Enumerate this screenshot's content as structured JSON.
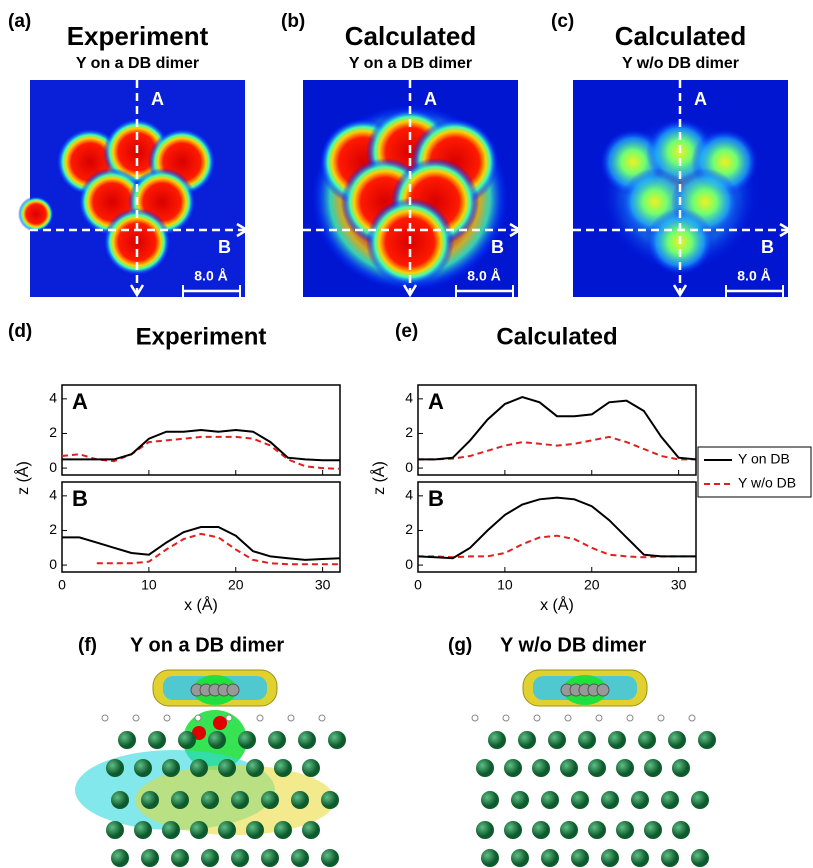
{
  "panels": [
    {
      "label": "(a)",
      "title": "Experiment",
      "subtitle": "Y on a DB dimer",
      "cut_a": "A",
      "cut_b": "B",
      "scale": "8.0 Å"
    },
    {
      "label": "(b)",
      "title": "Calculated",
      "subtitle": "Y on a DB dimer",
      "cut_a": "A",
      "cut_b": "B",
      "scale": "8.0 Å"
    },
    {
      "label": "(c)",
      "title": "Calculated",
      "subtitle": "Y w/o DB dimer",
      "cut_a": "A",
      "cut_b": "B",
      "scale": "8.0 Å"
    }
  ],
  "chart_data": [
    {
      "type": "line",
      "label": "(d)",
      "title": "Experiment",
      "xlabel": "x (Å)",
      "ylabel": "z (Å)",
      "xlim": [
        0,
        32
      ],
      "xticks": [
        0,
        10,
        20,
        30
      ],
      "ylim": [
        -0.4,
        4.8
      ],
      "yticks": [
        0,
        2,
        4
      ],
      "subplots": [
        {
          "label": "A",
          "x": [
            0,
            2,
            4,
            6,
            8,
            10,
            12,
            14,
            16,
            18,
            20,
            22,
            24,
            26,
            28,
            30,
            32
          ],
          "series": [
            {
              "color": "#000000",
              "dash": false,
              "values": [
                0.5,
                0.5,
                0.5,
                0.5,
                0.8,
                1.7,
                2.1,
                2.1,
                2.2,
                2.1,
                2.2,
                2.1,
                1.5,
                0.6,
                0.5,
                0.45,
                0.45
              ]
            },
            {
              "color": "#e02020",
              "dash": true,
              "values": [
                0.7,
                0.8,
                0.5,
                0.4,
                0.8,
                1.5,
                1.6,
                1.7,
                1.8,
                1.8,
                1.8,
                1.7,
                1.3,
                0.5,
                0.1,
                0.0,
                -0.05
              ]
            }
          ]
        },
        {
          "label": "B",
          "x": [
            0,
            2,
            4,
            6,
            8,
            10,
            12,
            14,
            16,
            18,
            20,
            22,
            24,
            26,
            28,
            30,
            32
          ],
          "series": [
            {
              "color": "#000000",
              "dash": false,
              "values": [
                1.6,
                1.6,
                1.3,
                1.0,
                0.7,
                0.6,
                1.3,
                1.9,
                2.2,
                2.2,
                1.7,
                0.8,
                0.5,
                0.4,
                0.3,
                0.35,
                0.4
              ]
            },
            {
              "color": "#e02020",
              "dash": true,
              "values": [
                null,
                null,
                0.1,
                0.1,
                0.1,
                0.2,
                0.9,
                1.5,
                1.8,
                1.6,
                0.9,
                0.3,
                0.1,
                0.05,
                0.05,
                0.05,
                0.05
              ]
            }
          ]
        }
      ]
    },
    {
      "type": "line",
      "label": "(e)",
      "title": "Calculated",
      "xlabel": "x (Å)",
      "ylabel": "z (Å)",
      "xlim": [
        0,
        32
      ],
      "xticks": [
        0,
        10,
        20,
        30
      ],
      "ylim": [
        -0.4,
        4.8
      ],
      "yticks": [
        0,
        2,
        4
      ],
      "legend": "right",
      "subplots": [
        {
          "label": "A",
          "x": [
            0,
            2,
            4,
            6,
            8,
            10,
            12,
            14,
            16,
            18,
            20,
            22,
            24,
            26,
            28,
            30,
            32
          ],
          "series": [
            {
              "name": "Y on DB",
              "color": "#000000",
              "dash": false,
              "values": [
                0.5,
                0.5,
                0.6,
                1.6,
                2.8,
                3.7,
                4.1,
                3.8,
                3.0,
                3.0,
                3.1,
                3.8,
                3.9,
                3.3,
                1.8,
                0.6,
                0.5
              ]
            },
            {
              "name": "Y w/o DB",
              "color": "#e02020",
              "dash": true,
              "values": [
                0.5,
                0.5,
                0.55,
                0.7,
                1.0,
                1.3,
                1.5,
                1.4,
                1.3,
                1.4,
                1.6,
                1.8,
                1.5,
                1.1,
                0.7,
                0.5,
                0.5
              ]
            }
          ]
        },
        {
          "label": "B",
          "x": [
            0,
            2,
            4,
            6,
            8,
            10,
            12,
            14,
            16,
            18,
            20,
            22,
            24,
            26,
            28,
            30,
            32
          ],
          "series": [
            {
              "color": "#000000",
              "dash": false,
              "values": [
                0.5,
                0.45,
                0.4,
                1.0,
                2.0,
                2.9,
                3.5,
                3.8,
                3.9,
                3.8,
                3.4,
                2.6,
                1.6,
                0.6,
                0.5,
                0.5,
                0.5
              ]
            },
            {
              "color": "#e02020",
              "dash": true,
              "values": [
                0.5,
                0.5,
                0.45,
                0.5,
                0.5,
                0.7,
                1.2,
                1.6,
                1.7,
                1.5,
                1.0,
                0.6,
                0.5,
                0.45,
                0.5,
                0.5,
                0.5
              ]
            }
          ]
        }
      ]
    }
  ],
  "structures": [
    {
      "label": "(f)",
      "title": "Y on a DB dimer"
    },
    {
      "label": "(g)",
      "title": "Y w/o DB dimer"
    }
  ]
}
